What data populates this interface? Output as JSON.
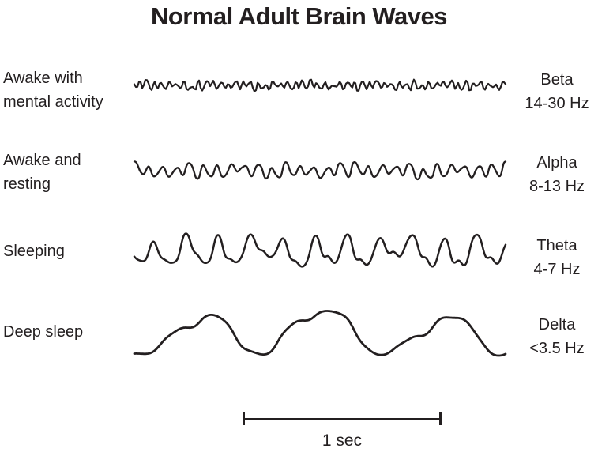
{
  "title": "Normal Adult Brain Waves",
  "colors": {
    "ink": "#231f20",
    "background": "#ffffff"
  },
  "rows": [
    {
      "id": "beta",
      "state_lines": [
        "Awake with",
        "mental activity"
      ],
      "band": "Beta",
      "freq_range": "14-30 Hz",
      "wave": {
        "seed": 13,
        "samples": 235,
        "amplitude": 9,
        "mod": 0.35,
        "modf": 7,
        "clip": 1.1,
        "stroke": 2.2,
        "components": [
          {
            "f": 50,
            "a": 0.5
          },
          {
            "f": 29,
            "a": 0.28
          },
          {
            "f": 76,
            "a": 0.18
          },
          {
            "f": 11,
            "a": 0.18
          },
          {
            "f": 5,
            "a": 0.12
          }
        ]
      }
    },
    {
      "id": "alpha",
      "state_lines": [
        "Awake and",
        "resting"
      ],
      "band": "Alpha",
      "freq_range": "8-13 Hz",
      "wave": {
        "seed": 29,
        "samples": 400,
        "amplitude": 13,
        "mod": 0.3,
        "modf": 5,
        "clip": 1.0,
        "stroke": 2.3,
        "components": [
          {
            "f": 27,
            "a": 0.6
          },
          {
            "f": 15,
            "a": 0.22
          },
          {
            "f": 49,
            "a": 0.12
          },
          {
            "f": 7,
            "a": 0.22
          },
          {
            "f": 3,
            "a": 0.1
          }
        ]
      }
    },
    {
      "id": "theta",
      "state_lines": [
        "Sleeping"
      ],
      "band": "Theta",
      "freq_range": "4-7 Hz",
      "wave": {
        "seed": 47,
        "samples": 430,
        "amplitude": 27,
        "mod": 0.22,
        "modf": 3,
        "clip": 0.9,
        "stroke": 2.5,
        "components": [
          {
            "f": 11.5,
            "a": 0.62
          },
          {
            "f": 23,
            "a": 0.22
          },
          {
            "f": 5.2,
            "a": 0.2
          },
          {
            "f": 34,
            "a": 0.07
          },
          {
            "f": 2.5,
            "a": 0.12
          }
        ]
      }
    },
    {
      "id": "delta",
      "state_lines": [
        "Deep sleep"
      ],
      "band": "Delta",
      "freq_range": "<3.5 Hz",
      "wave": {
        "seed": 5,
        "samples": 430,
        "amplitude": 38,
        "mod": 0.15,
        "modf": 1.5,
        "clip": 1.2,
        "stroke": 2.8,
        "components": [
          {
            "f": 3.05,
            "a": 0.85
          },
          {
            "f": 6.2,
            "a": 0.22
          },
          {
            "f": 9.7,
            "a": 0.1
          },
          {
            "f": 1.4,
            "a": 0.18
          },
          {
            "f": 16,
            "a": 0.05
          }
        ]
      }
    }
  ],
  "scale": {
    "label": "1 sec",
    "seconds": 1
  }
}
